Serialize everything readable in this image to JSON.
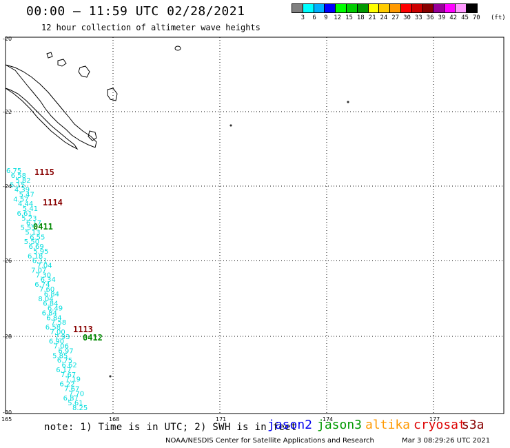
{
  "header": {
    "title": "00:00 – 11:59 UTC 02/28/2021",
    "subtitle": "12 hour collection of altimeter wave heights"
  },
  "legend": {
    "colors": [
      "#808080",
      "#00ffff",
      "#00b0ff",
      "#0000ff",
      "#00ff00",
      "#00cc00",
      "#009900",
      "#ffff00",
      "#ffcc00",
      "#ff9900",
      "#ff0000",
      "#cc0000",
      "#880000",
      "#990099",
      "#ff00ff",
      "#ff99ff",
      "#000000"
    ],
    "labels": [
      "3",
      "6",
      "9",
      "12",
      "15",
      "18",
      "21",
      "24",
      "27",
      "30",
      "33",
      "36",
      "39",
      "42",
      "45",
      "70"
    ],
    "unit": "(ft)"
  },
  "map": {
    "lat_labels": [
      "-20",
      "-22",
      "-24",
      "-26",
      "-28",
      "-30"
    ],
    "lon_labels": [
      "165",
      "168",
      "171",
      "174",
      "177"
    ],
    "track_color": "#00dddd",
    "swh_values": [
      "6.75",
      "6.58",
      "5.82",
      "5.15",
      "4.39",
      "5.47",
      "4.57",
      "4.44",
      "5.41",
      "6.61",
      "5.23",
      "6.17",
      "5.55",
      "5.13",
      "6.55",
      "5.50",
      "6.69",
      "5.95",
      "6.18",
      "6.11",
      "7.04",
      "7.07",
      "7.30",
      "6.34",
      "6.74",
      "7.60",
      "6.84",
      "8.04",
      "6.84",
      "6.49",
      "6.84",
      "6.84",
      "7.58",
      "6.58",
      "7.00",
      "7.93",
      "6.90",
      "7.06",
      "6.97",
      "5.85",
      "6.75",
      "6.62",
      "6.17",
      "7.67",
      "7.19",
      "6.22",
      "7.67",
      "7.70",
      "6.87",
      "5.61",
      "8.25"
    ],
    "time_labels": [
      {
        "text": "1115",
        "sat": "cryosat"
      },
      {
        "text": "1114",
        "sat": "cryosat"
      },
      {
        "text": "0411",
        "sat": "jason3"
      },
      {
        "text": "1113",
        "sat": "cryosat"
      },
      {
        "text": "0412",
        "sat": "jason3"
      }
    ]
  },
  "note": "note: 1) Time is in UTC; 2) SWH is in feet",
  "satellites": [
    {
      "name": "jason2",
      "color": "#0000ee"
    },
    {
      "name": "jason3",
      "color": "#009900"
    },
    {
      "name": "altika",
      "color": "#ff9900"
    },
    {
      "name": "cryosat",
      "color": "#dd0000"
    },
    {
      "name": "s3a",
      "color": "#880000"
    }
  ],
  "footer": {
    "credit": "NOAA/NESDIS Center for Satellite Applications and Research",
    "timestamp": "Mar  3 08:29:26 UTC 2021"
  }
}
